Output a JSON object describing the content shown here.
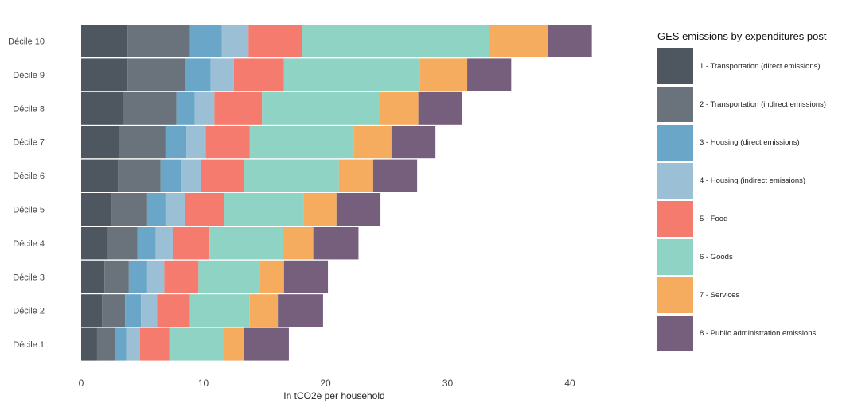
{
  "chart_data": {
    "type": "bar",
    "orientation": "horizontal",
    "stacked": true,
    "xlabel": "In  tCO2e per household",
    "ylabel": "",
    "xlim": [
      0,
      42
    ],
    "xticks": [
      0,
      10,
      20,
      30,
      40
    ],
    "grid": false,
    "legend": {
      "title": "GES emissions by expenditures post",
      "placement": "right"
    },
    "categories": [
      "Décile 1",
      "Décile 2",
      "Décile 3",
      "Décile 4",
      "Décile 5",
      "Décile 6",
      "Décile 7",
      "Décile 8",
      "Décile 9",
      "Décile 10"
    ],
    "series": [
      {
        "name": "1 - Transportation (direct emissions)",
        "color": "#4e575f",
        "values": [
          1.3,
          1.7,
          1.9,
          2.1,
          2.5,
          3.0,
          3.1,
          3.5,
          3.8,
          3.8
        ]
      },
      {
        "name": "2 - Transportation (indirect emissions)",
        "color": "#6a737b",
        "values": [
          1.5,
          1.9,
          2.0,
          2.5,
          2.9,
          3.5,
          3.8,
          4.3,
          4.7,
          5.1
        ]
      },
      {
        "name": "3 - Housing (direct emissions)",
        "color": "#6aa6c8",
        "values": [
          0.9,
          1.3,
          1.5,
          1.5,
          1.5,
          1.7,
          1.7,
          1.5,
          2.1,
          2.6
        ]
      },
      {
        "name": "4 - Housing (indirect emissions)",
        "color": "#9bc0d6",
        "values": [
          1.1,
          1.3,
          1.4,
          1.4,
          1.6,
          1.6,
          1.6,
          1.6,
          1.9,
          2.2
        ]
      },
      {
        "name": "5 - Food",
        "color": "#f57b6e",
        "values": [
          2.4,
          2.7,
          2.8,
          3.0,
          3.2,
          3.5,
          3.6,
          3.9,
          4.1,
          4.4
        ]
      },
      {
        "name": "6 - Goods",
        "color": "#8fd3c4",
        "values": [
          4.4,
          4.9,
          5.0,
          6.0,
          6.5,
          7.8,
          8.5,
          9.6,
          11.1,
          15.3
        ]
      },
      {
        "name": "7 - Services",
        "color": "#f6ac5e",
        "values": [
          1.7,
          2.3,
          2.0,
          2.5,
          2.7,
          2.8,
          3.1,
          3.2,
          3.9,
          4.8
        ]
      },
      {
        "name": "8 - Public administration emissions",
        "color": "#755f7d",
        "values": [
          3.7,
          3.7,
          3.6,
          3.7,
          3.6,
          3.6,
          3.6,
          3.6,
          3.6,
          3.6
        ]
      }
    ]
  }
}
